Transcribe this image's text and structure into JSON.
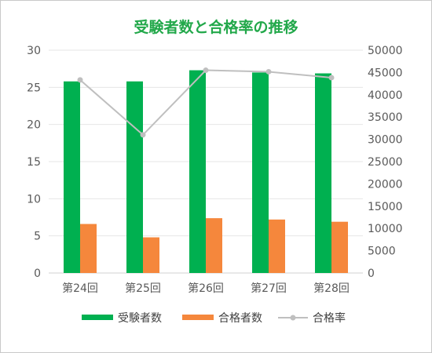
{
  "colors": {
    "title": "#22a84a",
    "applicants": "#00b050",
    "passers": "#f5873c",
    "rate": "#bfbfbf",
    "grid": "#e6e6e6"
  },
  "chart_data": {
    "type": "bar",
    "title": "受験者数と合格率の推移",
    "categories": [
      "第24回",
      "第25回",
      "第26回",
      "第27回",
      "第28回"
    ],
    "series": [
      {
        "name": "受験者数",
        "axis": "right",
        "kind": "bar",
        "values": [
          43000,
          43000,
          45500,
          45000,
          44800
        ]
      },
      {
        "name": "合格者数",
        "axis": "right",
        "kind": "bar",
        "values": [
          11000,
          8000,
          12300,
          12000,
          11500
        ]
      },
      {
        "name": "合格率",
        "axis": "left",
        "kind": "line",
        "values": [
          26,
          18.6,
          27.3,
          27.1,
          26.3
        ]
      }
    ],
    "y_left": {
      "min": 0,
      "max": 30,
      "ticks": [
        0,
        5,
        10,
        15,
        20,
        25,
        30
      ]
    },
    "y_right": {
      "min": 0,
      "max": 50000,
      "ticks": [
        0,
        5000,
        10000,
        15000,
        20000,
        25000,
        30000,
        35000,
        40000,
        45000,
        50000
      ]
    },
    "grid": true,
    "legend_position": "bottom"
  }
}
